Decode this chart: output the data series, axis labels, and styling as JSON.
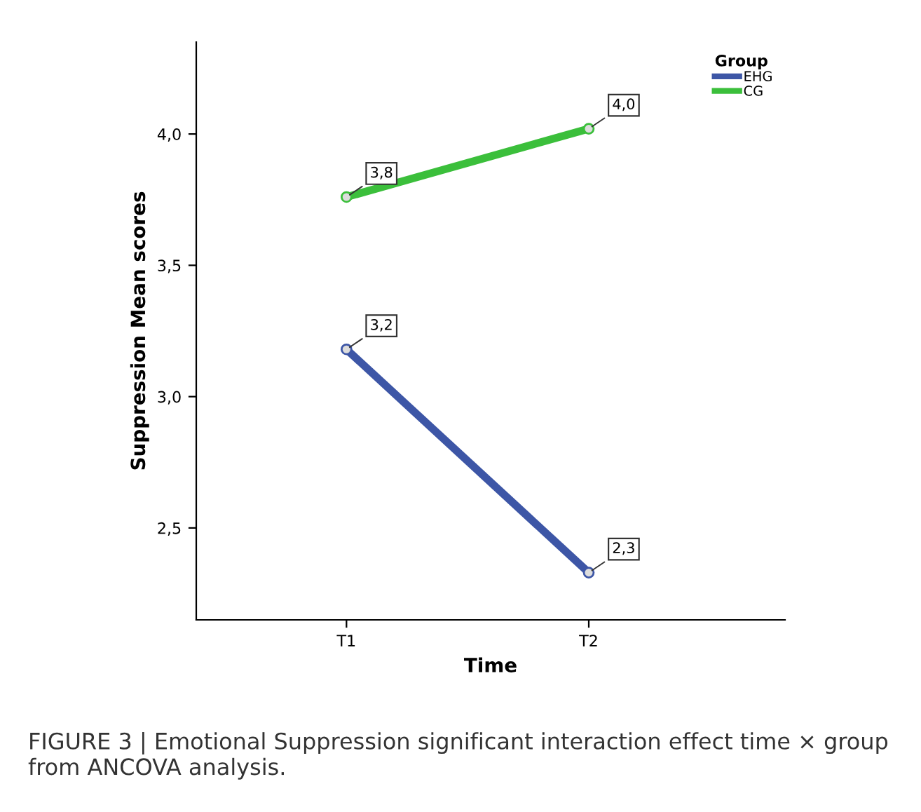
{
  "chart_data": {
    "type": "line",
    "xlabel": "Time",
    "ylabel": "Suppression Mean scores",
    "legend_title": "Group",
    "categories": [
      "T1",
      "T2"
    ],
    "series": [
      {
        "name": "EHG",
        "color": "#3d56a6",
        "values": [
          3.18,
          2.33
        ],
        "value_labels": [
          "3,2",
          "2,3"
        ]
      },
      {
        "name": "CG",
        "color": "#3bbf3b",
        "values": [
          3.76,
          4.02
        ],
        "value_labels": [
          "3,8",
          "4,0"
        ]
      }
    ],
    "ylim": [
      2.15,
      4.35
    ],
    "yticks": [
      {
        "value": 2.5,
        "label": "2,5"
      },
      {
        "value": 3.0,
        "label": "3,0"
      },
      {
        "value": 3.5,
        "label": "3,5"
      },
      {
        "value": 4.0,
        "label": "4,0"
      }
    ],
    "marker": "circle",
    "line_style": "solid",
    "grid": false,
    "legend": "top right",
    "annotations": [
      "FIGURE 3 | Emotional Suppression significant interaction effect time × group from ANCOVA analysis."
    ]
  }
}
